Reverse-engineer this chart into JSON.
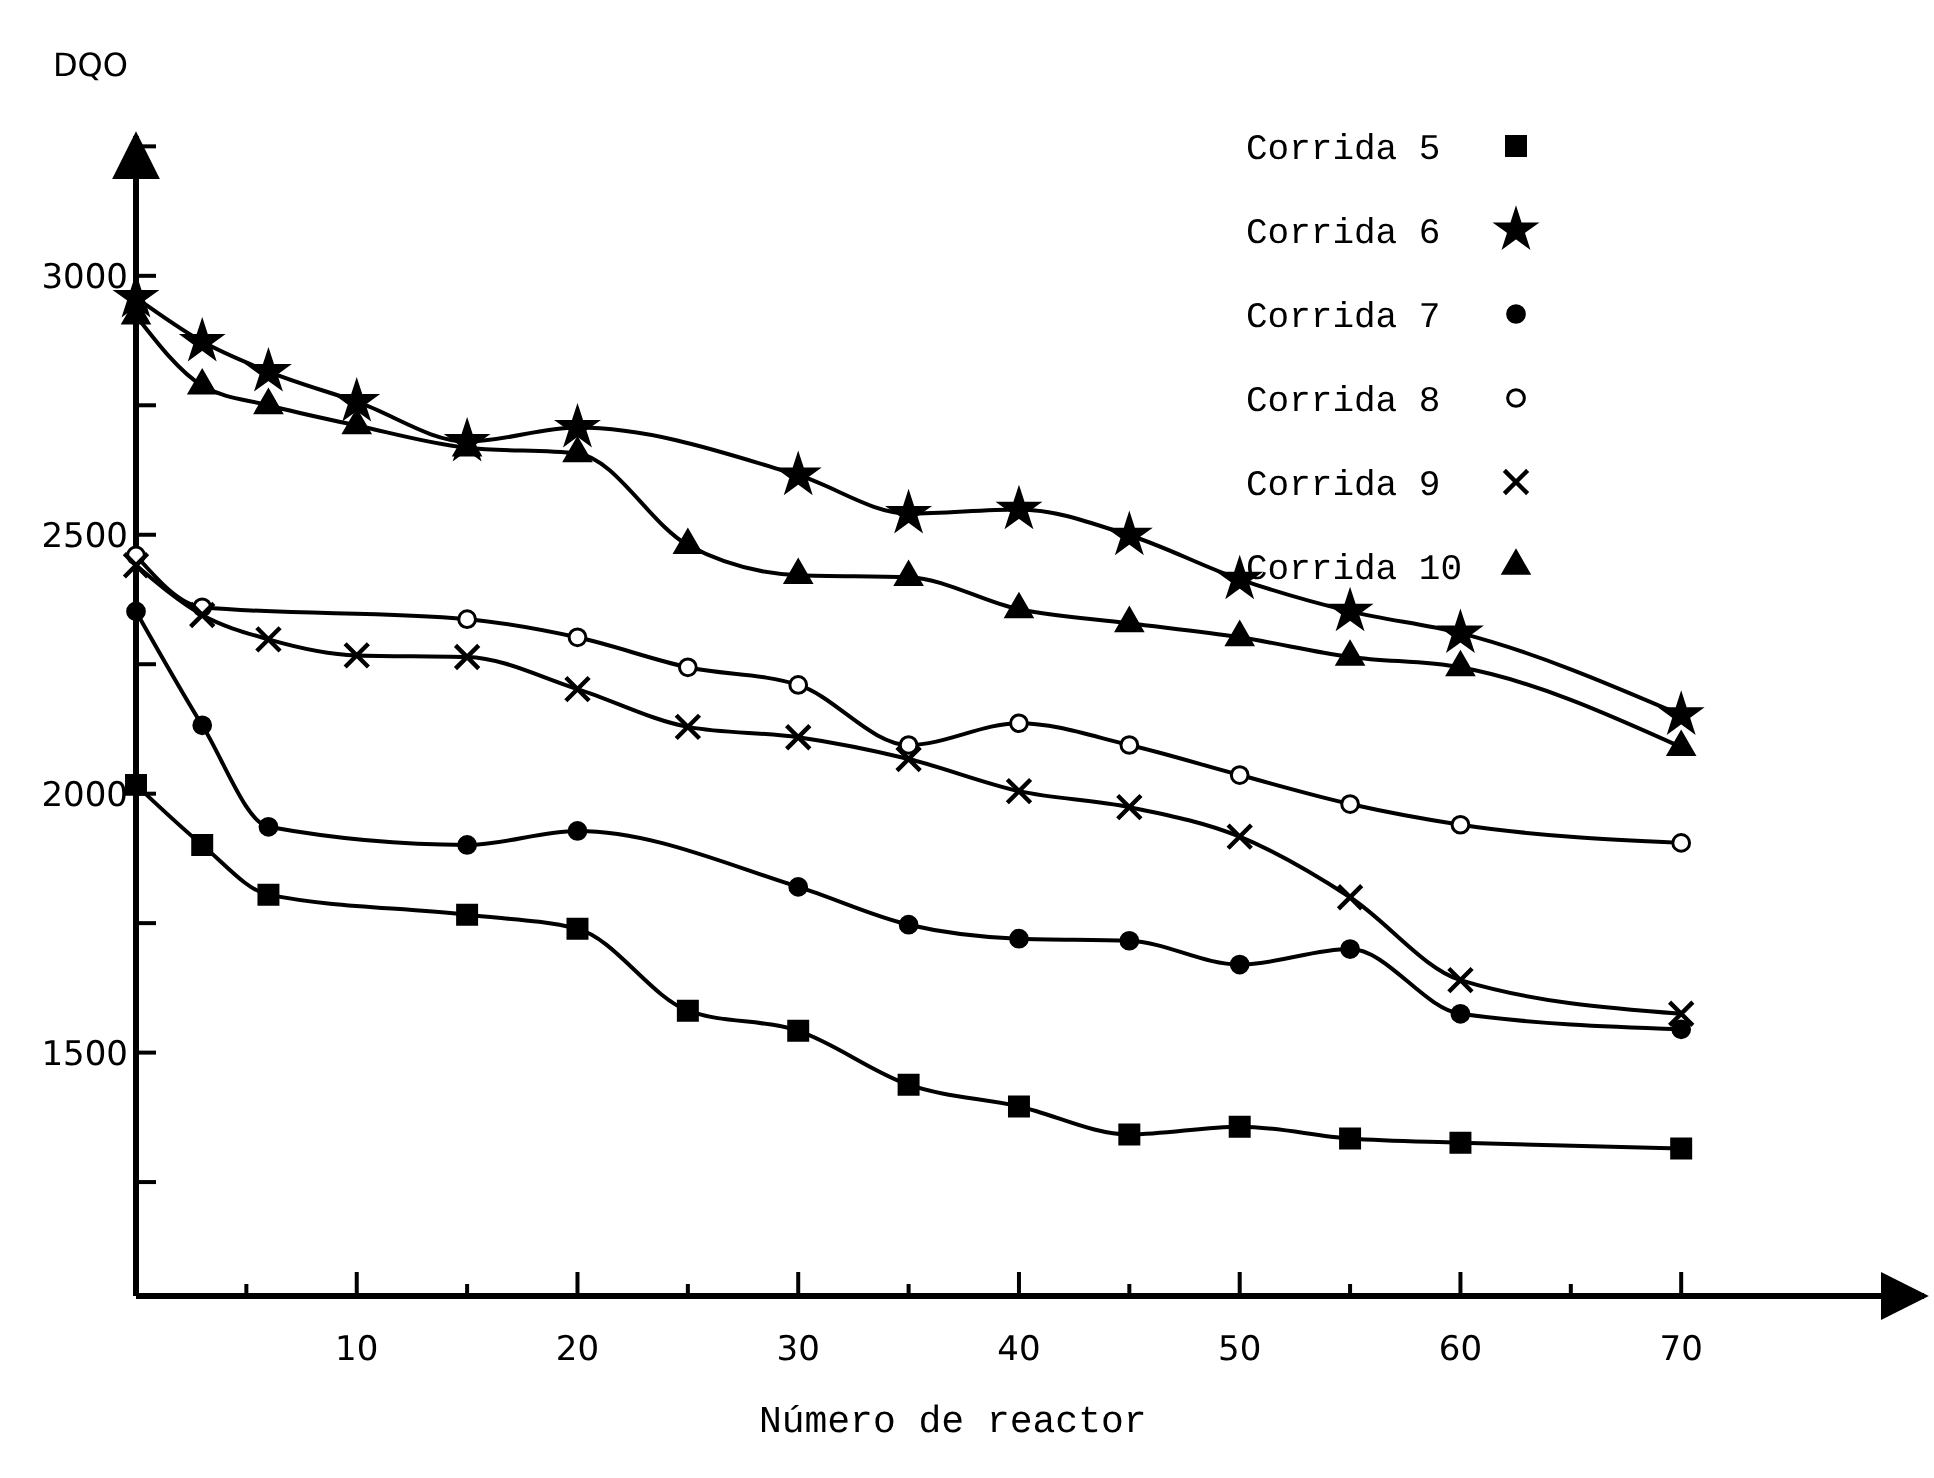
{
  "chart_data": {
    "type": "line",
    "xlabel": "Número de reactor",
    "ylabel": "DQO",
    "xlim": [
      0,
      81
    ],
    "ylim": [
      1030,
      3270
    ],
    "xticks": [
      {
        "value": 5,
        "label": null
      },
      10,
      {
        "value": 15,
        "label": null
      },
      20,
      {
        "value": 25,
        "label": null
      },
      30,
      {
        "value": 35,
        "label": null
      },
      40,
      {
        "value": 45,
        "label": null
      },
      50,
      {
        "value": 55,
        "label": null
      },
      60,
      {
        "value": 65,
        "label": null
      },
      70
    ],
    "yticks": [
      {
        "value": 1250,
        "label": null
      },
      1500,
      {
        "value": 1750,
        "label": null
      },
      2000,
      {
        "value": 2250,
        "label": null
      },
      2500,
      {
        "value": 2750,
        "label": null
      },
      3000,
      {
        "value": 3250,
        "label": null
      }
    ],
    "legend": "top right",
    "grid": false,
    "line_style": "solid",
    "series": [
      {
        "name": "Corrida 5",
        "color": "#000000",
        "marker": "square",
        "x": [
          0,
          3,
          6,
          15,
          20,
          25,
          30,
          35,
          40,
          45,
          50,
          55,
          60,
          70
        ],
        "values": [
          2017,
          1901,
          1805,
          1766,
          1739,
          1581,
          1542,
          1438,
          1396,
          1342,
          1357,
          1334,
          1326,
          1315
        ]
      },
      {
        "name": "Corrida 6",
        "color": "#000000",
        "marker": "star",
        "x": [
          0,
          3,
          6,
          10,
          15,
          20,
          30,
          35,
          40,
          45,
          50,
          55,
          60,
          70
        ],
        "values": [
          2958,
          2873,
          2815,
          2757,
          2680,
          2707,
          2615,
          2541,
          2549,
          2499,
          2414,
          2352,
          2310,
          2152
        ]
      },
      {
        "name": "Corrida 7",
        "color": "#000000",
        "marker": "circle",
        "x": [
          0,
          3,
          6,
          15,
          20,
          30,
          35,
          40,
          45,
          50,
          55,
          60,
          70
        ],
        "values": [
          2352,
          2132,
          1936,
          1901,
          1928,
          1820,
          1747,
          1720,
          1716,
          1670,
          1700,
          1575,
          1545
        ]
      },
      {
        "name": "Corrida 8",
        "color": "#000000",
        "marker": "circle",
        "x": [
          0,
          3,
          15,
          20,
          25,
          30,
          35,
          40,
          45,
          50,
          55,
          60,
          70
        ],
        "values": [
          2460,
          2360,
          2337,
          2302,
          2244,
          2210,
          2094,
          2136,
          2094,
          2036,
          1980,
          1940,
          1905
        ]
      },
      {
        "name": "Corrida 9",
        "color": "#000000",
        "marker": "cross",
        "x": [
          0,
          3,
          6,
          10,
          15,
          20,
          25,
          30,
          35,
          40,
          45,
          50,
          55,
          60,
          70
        ],
        "values": [
          2441,
          2345,
          2298,
          2267,
          2264,
          2202,
          2129,
          2109,
          2067,
          2005,
          1974,
          1917,
          1800,
          1640,
          1575
        ]
      },
      {
        "name": "Corrida 10",
        "color": "#000000",
        "marker": "triangle",
        "x": [
          0,
          3,
          6,
          10,
          15,
          20,
          25,
          30,
          35,
          40,
          45,
          50,
          55,
          60,
          70
        ],
        "values": [
          2923,
          2788,
          2750,
          2711,
          2668,
          2657,
          2480,
          2422,
          2418,
          2356,
          2329,
          2302,
          2264,
          2244,
          2090
        ]
      }
    ]
  }
}
